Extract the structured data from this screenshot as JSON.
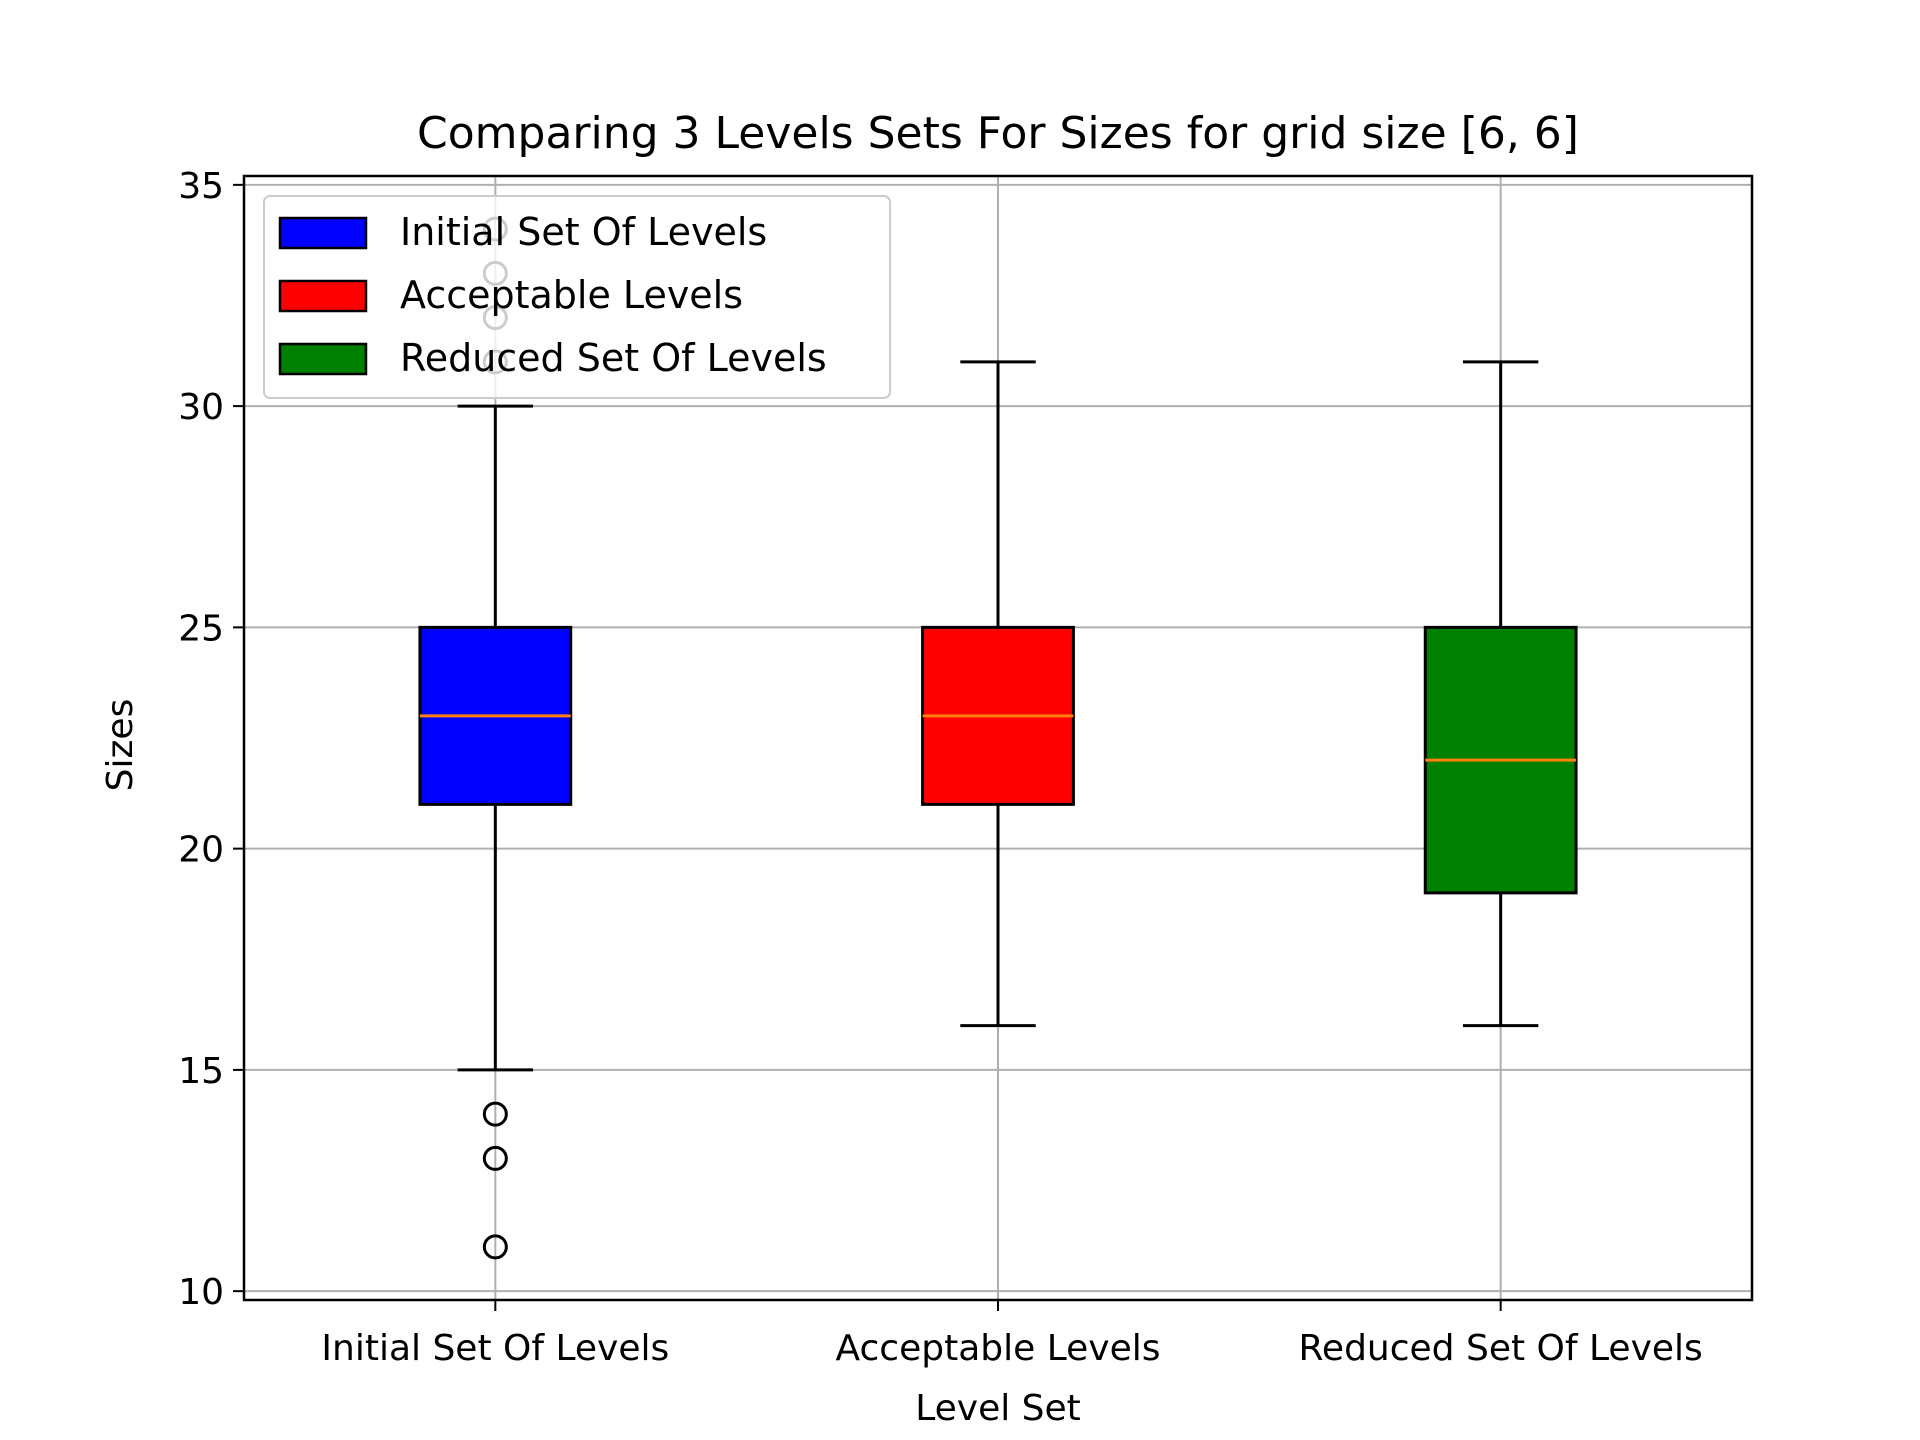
{
  "chart_data": {
    "type": "box",
    "title": "Comparing 3 Levels Sets For Sizes for grid size [6, 6]",
    "xlabel": "Level Set",
    "ylabel": "Sizes",
    "ylim": [
      9.8,
      35.2
    ],
    "yticks": [
      10,
      15,
      20,
      25,
      30,
      35
    ],
    "grid": true,
    "legend_position": "top-left",
    "colors": {
      "median": "#ff7f0e",
      "grid": "#b0b0b0",
      "outline": "#000000"
    },
    "categories": [
      "Initial Set Of Levels",
      "Acceptable Levels",
      "Reduced Set Of Levels"
    ],
    "boxes": [
      {
        "label": "Initial Set Of Levels",
        "color": "#0000ff",
        "whisker_low": 15,
        "q1": 21,
        "median": 23,
        "q3": 25,
        "whisker_high": 30,
        "outliers": [
          11,
          13,
          14,
          31,
          32,
          33,
          34
        ]
      },
      {
        "label": "Acceptable Levels",
        "color": "#ff0000",
        "whisker_low": 16,
        "q1": 21,
        "median": 23,
        "q3": 25,
        "whisker_high": 31,
        "outliers": []
      },
      {
        "label": "Reduced Set Of Levels",
        "color": "#008000",
        "whisker_low": 16,
        "q1": 19,
        "median": 22,
        "q3": 25,
        "whisker_high": 31,
        "outliers": []
      }
    ],
    "legend": [
      {
        "label": "Initial Set Of Levels",
        "color": "#0000ff"
      },
      {
        "label": "Acceptable Levels",
        "color": "#ff0000"
      },
      {
        "label": "Reduced Set Of Levels",
        "color": "#008000"
      }
    ]
  }
}
